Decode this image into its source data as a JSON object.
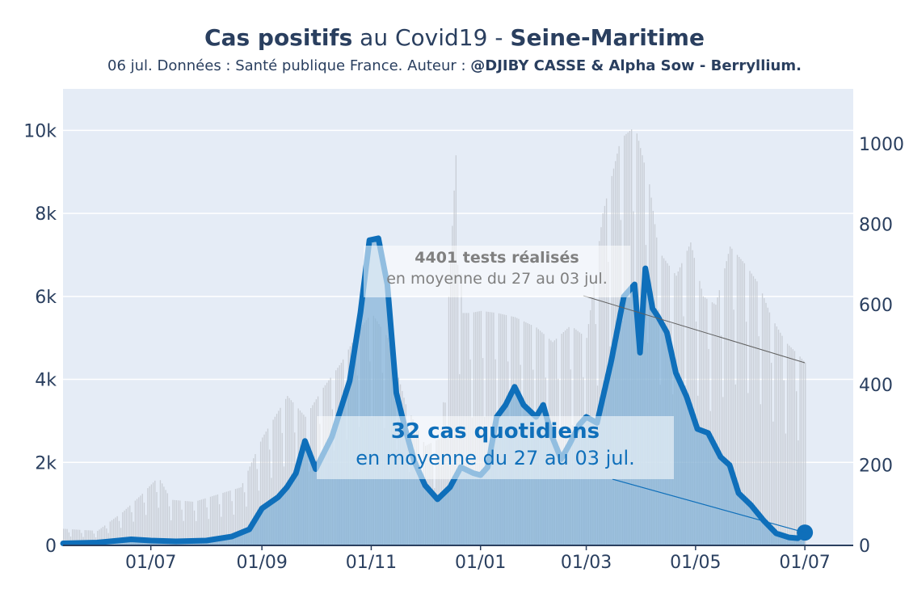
{
  "header": {
    "title_bold_1": "Cas positifs",
    "title_normal": " au Covid19 - ",
    "title_bold_2": "Seine-Maritime",
    "subtitle_normal": "06 jul. Données : Santé publique France. Auteur : ",
    "subtitle_bold": "@DJIBY CASSE & Alpha Sow - Berryllium."
  },
  "annotations": {
    "tests_value": "4401 tests réalisés",
    "tests_period": "en moyenne du 27 au 03 jul.",
    "cases_value": "32 cas quotidiens",
    "cases_period": "en moyenne du 27 au 03 jul."
  },
  "colors": {
    "plot_background": "#e5ecf6",
    "tests_bars": "#c4c9d0",
    "cases_line": "#0f6fba",
    "cases_area": "#7aaed6",
    "annotation_tests_text": "#808080",
    "annotation_cases_text": "#0f6fba"
  },
  "chart_data": {
    "type": "line",
    "title": "Cas positifs au Covid19 - Seine-Maritime",
    "x_ticks": [
      "01/07",
      "01/09",
      "01/11",
      "01/01",
      "01/03",
      "01/05",
      "01/07"
    ],
    "x_range": [
      "2020-05-13",
      "2021-07-28"
    ],
    "y_left": {
      "ticks": [
        "0",
        "2k",
        "4k",
        "6k",
        "8k",
        "10k"
      ],
      "range": [
        0,
        11000
      ]
    },
    "y_right": {
      "ticks": [
        "0",
        "200",
        "400",
        "600",
        "800",
        "1000"
      ],
      "range": [
        0,
        1137
      ]
    },
    "grid": true,
    "legend": "none",
    "series": [
      {
        "name": "",
        "kind": "bar",
        "axis": "left",
        "x": [
          "2020-05-13",
          "2020-06-01",
          "2020-06-15",
          "2020-06-25",
          "2020-07-05",
          "2020-07-12",
          "2020-07-25",
          "2020-08-05",
          "2020-08-20",
          "2020-09-01",
          "2020-09-15",
          "2020-09-25",
          "2020-10-05",
          "2020-10-15",
          "2020-10-25",
          "2020-11-01",
          "2020-11-10",
          "2020-11-20",
          "2020-12-01",
          "2020-12-10",
          "2020-12-18",
          "2020-12-22",
          "2020-12-26",
          "2021-01-01",
          "2021-01-10",
          "2021-01-20",
          "2021-02-01",
          "2021-02-10",
          "2021-02-20",
          "2021-03-01",
          "2021-03-10",
          "2021-03-20",
          "2021-03-28",
          "2021-04-01",
          "2021-04-05",
          "2021-04-10",
          "2021-04-20",
          "2021-04-28",
          "2021-05-05",
          "2021-05-12",
          "2021-05-20",
          "2021-05-28",
          "2021-06-05",
          "2021-06-12",
          "2021-06-20",
          "2021-06-27",
          "2021-07-01"
        ],
        "values": [
          400,
          350,
          800,
          1200,
          1650,
          1100,
          1050,
          1200,
          1400,
          2600,
          3600,
          3100,
          3800,
          4400,
          5200,
          5600,
          5000,
          3400,
          2400,
          2600,
          9400,
          5600,
          5600,
          5650,
          5600,
          5500,
          5250,
          4900,
          5300,
          5000,
          8000,
          9800,
          10100,
          9400,
          8700,
          7100,
          6500,
          7300,
          6000,
          5800,
          7200,
          6800,
          6300,
          5500,
          4900,
          4600,
          4400
        ]
      },
      {
        "name": "",
        "kind": "line",
        "axis": "right",
        "x": [
          "2020-05-13",
          "2020-06-01",
          "2020-06-20",
          "2020-07-01",
          "2020-07-15",
          "2020-08-01",
          "2020-08-15",
          "2020-08-25",
          "2020-09-01",
          "2020-09-10",
          "2020-09-15",
          "2020-09-20",
          "2020-09-25",
          "2020-10-01",
          "2020-10-10",
          "2020-10-20",
          "2020-10-26",
          "2020-10-31",
          "2020-11-05",
          "2020-11-10",
          "2020-11-15",
          "2020-11-20",
          "2020-11-25",
          "2020-12-01",
          "2020-12-08",
          "2020-12-15",
          "2020-12-21",
          "2020-12-28",
          "2021-01-01",
          "2021-01-05",
          "2021-01-10",
          "2021-01-15",
          "2021-01-20",
          "2021-01-25",
          "2021-02-01",
          "2021-02-05",
          "2021-02-10",
          "2021-02-15",
          "2021-02-20",
          "2021-02-25",
          "2021-03-01",
          "2021-03-07",
          "2021-03-15",
          "2021-03-22",
          "2021-03-28",
          "2021-03-31",
          "2021-04-03",
          "2021-04-07",
          "2021-04-10",
          "2021-04-15",
          "2021-04-20",
          "2021-04-26",
          "2021-05-02",
          "2021-05-08",
          "2021-05-15",
          "2021-05-20",
          "2021-05-25",
          "2021-06-01",
          "2021-06-08",
          "2021-06-15",
          "2021-06-22",
          "2021-06-27",
          "2021-07-01"
        ],
        "values": [
          5,
          7,
          15,
          12,
          10,
          12,
          22,
          40,
          92,
          120,
          145,
          180,
          260,
          190,
          270,
          410,
          580,
          760,
          765,
          650,
          380,
          290,
          210,
          150,
          115,
          145,
          195,
          180,
          175,
          195,
          320,
          350,
          395,
          350,
          320,
          350,
          270,
          215,
          255,
          300,
          320,
          305,
          460,
          620,
          650,
          480,
          690,
          590,
          570,
          530,
          430,
          370,
          290,
          280,
          220,
          200,
          130,
          100,
          62,
          30,
          20,
          18,
          32
        ]
      }
    ]
  }
}
